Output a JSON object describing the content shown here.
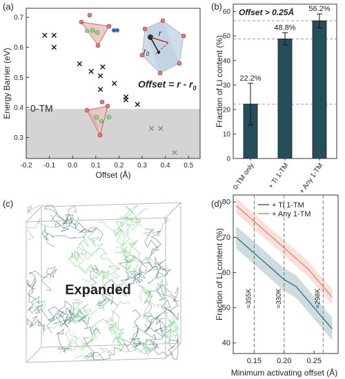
{
  "colors": {
    "dark_teal": "#244e5a",
    "teal": "#3a7480",
    "salmon": "#e6876e",
    "grey_band": "#d4d4d4",
    "green_li": "#88d98a"
  },
  "panels": {
    "a": {
      "label": "(a)"
    },
    "b": {
      "label": "(b)"
    },
    "c": {
      "label": "(c)",
      "box_text": "Expanded"
    },
    "d": {
      "label": "(d)"
    }
  },
  "chart_data": [
    {
      "panel": "a",
      "type": "scatter",
      "xlabel": "Offset (Å)",
      "ylabel": "Energy Barrier (eV)",
      "xlim": [
        -0.2,
        0.55
      ],
      "ylim": [
        0.23,
        0.73
      ],
      "xticks": [
        -0.2,
        -0.1,
        0.0,
        0.1,
        0.2,
        0.3,
        0.4,
        0.5
      ],
      "xtick_labels": [
        "-0.2",
        "-0.1",
        "0.0",
        "0.1",
        "0.2",
        "0.3",
        "0.4",
        "0.5"
      ],
      "yticks": [
        0.3,
        0.4,
        0.5,
        0.6,
        0.7
      ],
      "ytick_labels": [
        "0.3",
        "0.4",
        "0.5",
        "0.6",
        "0.7"
      ],
      "band_threshold": 0.395,
      "band_label": "0-TM",
      "annotation": "Offset = r - r",
      "annotation_sub": "0",
      "geom_labels": {
        "r": "r",
        "r0": "r",
        "r0_sub": "0"
      },
      "points_black": [
        [
          -0.12,
          0.64
        ],
        [
          -0.08,
          0.64
        ],
        [
          -0.08,
          0.6
        ],
        [
          0.03,
          0.545
        ],
        [
          0.08,
          0.52
        ],
        [
          0.12,
          0.505
        ],
        [
          0.13,
          0.535
        ],
        [
          0.18,
          0.48
        ],
        [
          0.12,
          0.46
        ],
        [
          0.23,
          0.435
        ],
        [
          0.23,
          0.425
        ],
        [
          0.28,
          0.41
        ]
      ],
      "points_grey": [
        [
          0.34,
          0.33
        ],
        [
          0.38,
          0.33
        ],
        [
          0.44,
          0.25
        ]
      ]
    },
    {
      "panel": "b",
      "type": "bar",
      "categories": [
        "0-TM only",
        "+ Ti 1-TM",
        "+ Any 1-TM"
      ],
      "values": [
        22.2,
        48.8,
        56.2
      ],
      "value_labels": [
        "22.2%",
        "48.8%",
        "56.2%"
      ],
      "errors": [
        8.5,
        2.5,
        2.8
      ],
      "ylabel": "Fraction of Li content (%)",
      "ylim": [
        0,
        63
      ],
      "yticks": [
        0,
        10,
        20,
        30,
        40,
        50,
        60
      ],
      "ytick_labels": [
        "0",
        "10",
        "20",
        "30",
        "40",
        "50",
        "60"
      ],
      "reference_lines": [
        22.2,
        48.8,
        56.2
      ],
      "title": "Offset > 0.25Å"
    },
    {
      "panel": "d",
      "type": "line",
      "xlabel": "Minimum activating offset (Å)",
      "ylabel": "Fraction of Li content (%)",
      "xlim": [
        0.115,
        0.29
      ],
      "ylim": [
        37,
        82
      ],
      "xticks": [
        0.15,
        0.2,
        0.25
      ],
      "xtick_labels": [
        "0.15",
        "0.20",
        "0.25"
      ],
      "yticks": [
        40,
        50,
        60,
        70,
        80
      ],
      "ytick_labels": [
        "40",
        "50",
        "60",
        "70",
        "80"
      ],
      "vlines": [
        {
          "x": 0.15,
          "label": "≈355K"
        },
        {
          "x": 0.2,
          "label": "≈330K"
        },
        {
          "x": 0.265,
          "label": "≈298K"
        }
      ],
      "series": [
        {
          "name": "+ Ti 1-TM",
          "color": "#3a7480",
          "x": [
            0.12,
            0.14,
            0.16,
            0.18,
            0.2,
            0.22,
            0.24,
            0.26,
            0.28
          ],
          "y": [
            70,
            67,
            64,
            61,
            58,
            56,
            52,
            48,
            44
          ],
          "band": 3.2
        },
        {
          "name": "+ Any 1-TM",
          "color": "#e6876e",
          "x": [
            0.12,
            0.14,
            0.16,
            0.18,
            0.2,
            0.22,
            0.24,
            0.26,
            0.28
          ],
          "y": [
            79,
            76,
            73,
            70,
            67,
            64,
            61,
            57,
            53
          ],
          "band": 2.2
        }
      ]
    }
  ]
}
